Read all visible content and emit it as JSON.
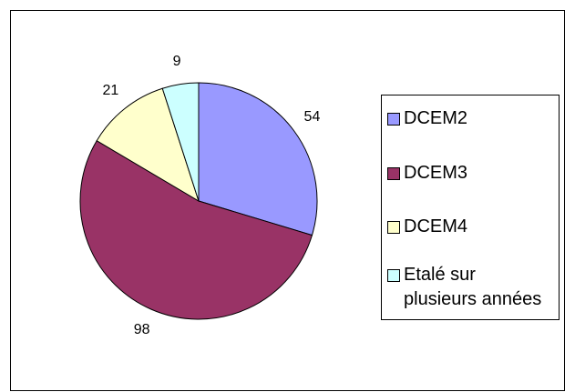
{
  "chart_data": {
    "type": "pie",
    "categories": [
      "DCEM2",
      "DCEM3",
      "DCEM4",
      "Etalé sur plusieurs années"
    ],
    "values": [
      54,
      98,
      21,
      9
    ],
    "colors": [
      "#9999ff",
      "#993366",
      "#ffffcc",
      "#ccffff"
    ]
  }
}
